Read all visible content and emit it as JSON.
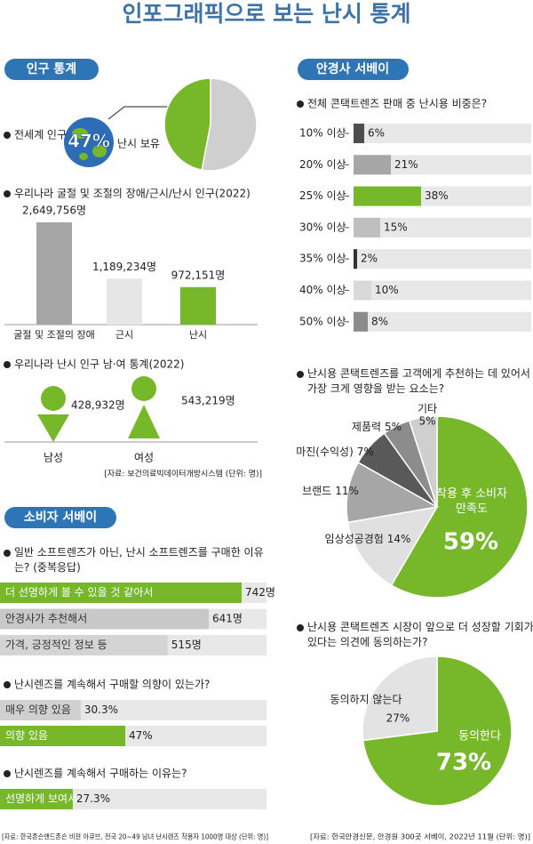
{
  "title": "인포그래픽으로 보는 난시 통계",
  "sections": [
    "인구 통계",
    "안경사 서베이",
    "소비자 서베이"
  ],
  "sources": [
    "[자료: 보건의료빅데이터개방시스템 (단위: 명)]",
    "[자료: 한국존슨앤드존슨 비젼 아큐브, 전국 20~49 남녀 난시렌즈 착용자 1000명 대상 (단위: 명)]",
    "[자료: 한국안경신문, 안경원 300곳 서베이, 2022년 11월 (단위: 명)]"
  ],
  "chart_data": [
    {
      "type": "pie",
      "title": "전세계 인구",
      "categories": [
        "난시 보유",
        null
      ],
      "values": [
        47,
        53
      ],
      "value_labels": [
        "47%",
        null
      ],
      "colors": [
        "#76b82a",
        "#cfcfcf"
      ]
    },
    {
      "type": "bar",
      "title": "우리나라 굴절 및 조절의 장애/근시/난시 인구(2022)",
      "categories": [
        "굴절 및 조절의 장애",
        "근시",
        "난시"
      ],
      "values": [
        2649756,
        1189234,
        972151
      ],
      "value_labels": [
        "2,649,756명",
        "1,189,234명",
        "972,151명"
      ],
      "colors": [
        "#a6a6a6",
        "#e6e6e6",
        "#76b82a"
      ]
    },
    {
      "type": "pictogram",
      "title": "우리나라 난시 인구 남·여 통계(2022)",
      "categories": [
        "남성",
        "여성"
      ],
      "values": [
        428932,
        543219
      ],
      "value_labels": [
        "428,932명",
        "543,219명"
      ],
      "colors": [
        "#76b82a",
        "#76b82a"
      ]
    },
    {
      "type": "bar",
      "horizontal": true,
      "title": "전체 콘택트렌즈 판매 중 난시용 비중은?",
      "categories": [
        "10% 이상",
        "20% 이상",
        "25% 이상",
        "30% 이상",
        "35% 이상",
        "40% 이상",
        "50% 이상"
      ],
      "values": [
        6,
        21,
        38,
        15,
        2,
        10,
        8
      ],
      "value_labels": [
        "6%",
        "21%",
        "38%",
        "15%",
        "2%",
        "10%",
        "8%"
      ],
      "xlim": [
        0,
        100
      ],
      "colors": [
        "#4d4d4d",
        "#a6a6a6",
        "#76b82a",
        "#bfbfbf",
        "#333333",
        "#d9d9d9",
        "#8c8c8c"
      ]
    },
    {
      "type": "pie",
      "title": "난시용 콘택트렌즈를 고객에게 추천하는 데 있어서 가장 크게 영향을 받는 요소는?",
      "categories": [
        "착용 후 소비자 만족도",
        "임상성공경험",
        "브랜드",
        "마진(수익성)",
        "제품력",
        "기타"
      ],
      "values": [
        59,
        14,
        11,
        7,
        5,
        5
      ],
      "value_labels": [
        "59%",
        "14%",
        "11%",
        "7%",
        "5%",
        "5%"
      ],
      "colors": [
        "#76b82a",
        "#e0e0e0",
        "#a6a6a6",
        "#595959",
        "#8c8c8c",
        "#cfcfcf"
      ]
    },
    {
      "type": "bar",
      "horizontal": true,
      "title": "일반 소프트렌즈가 아닌, 난시 소프트렌즈를 구매한 이유는? (중복응답)",
      "categories": [
        "더 선명하게 볼 수 있을 것 같아서",
        "안경사가 추천해서",
        "가격, 긍정적인 정보 등"
      ],
      "values": [
        742,
        641,
        515
      ],
      "value_labels": [
        "742명",
        "641명",
        "515명"
      ],
      "colors": [
        "#76b82a",
        "#c8c8c8",
        "#d4d4d4"
      ]
    },
    {
      "type": "bar",
      "horizontal": true,
      "title": "난시렌즈를 계속해서 구매할 의향이 있는가?",
      "categories": [
        "매우 의향 있음",
        "의향 있음"
      ],
      "values": [
        30.3,
        47
      ],
      "value_labels": [
        "30.3%",
        "47%"
      ],
      "xlim": [
        0,
        100
      ],
      "colors": [
        "#d0d0d0",
        "#76b82a"
      ]
    },
    {
      "type": "bar",
      "horizontal": true,
      "title": "난시렌즈를 계속해서 구매하는 이유는?",
      "categories": [
        "선명하게 보여서"
      ],
      "values": [
        27.3
      ],
      "value_labels": [
        "27.3%"
      ],
      "xlim": [
        0,
        100
      ],
      "colors": [
        "#76b82a"
      ]
    },
    {
      "type": "pie",
      "title": "난시용 콘택트렌즈 시장이 앞으로 더 성장할 기회가 있다는 의견에 동의하는가?",
      "categories": [
        "동의한다",
        "동의하지 않는다"
      ],
      "values": [
        73,
        27
      ],
      "value_labels": [
        "73%",
        "27%"
      ],
      "colors": [
        "#76b82a",
        "#e3e3e3"
      ]
    }
  ]
}
